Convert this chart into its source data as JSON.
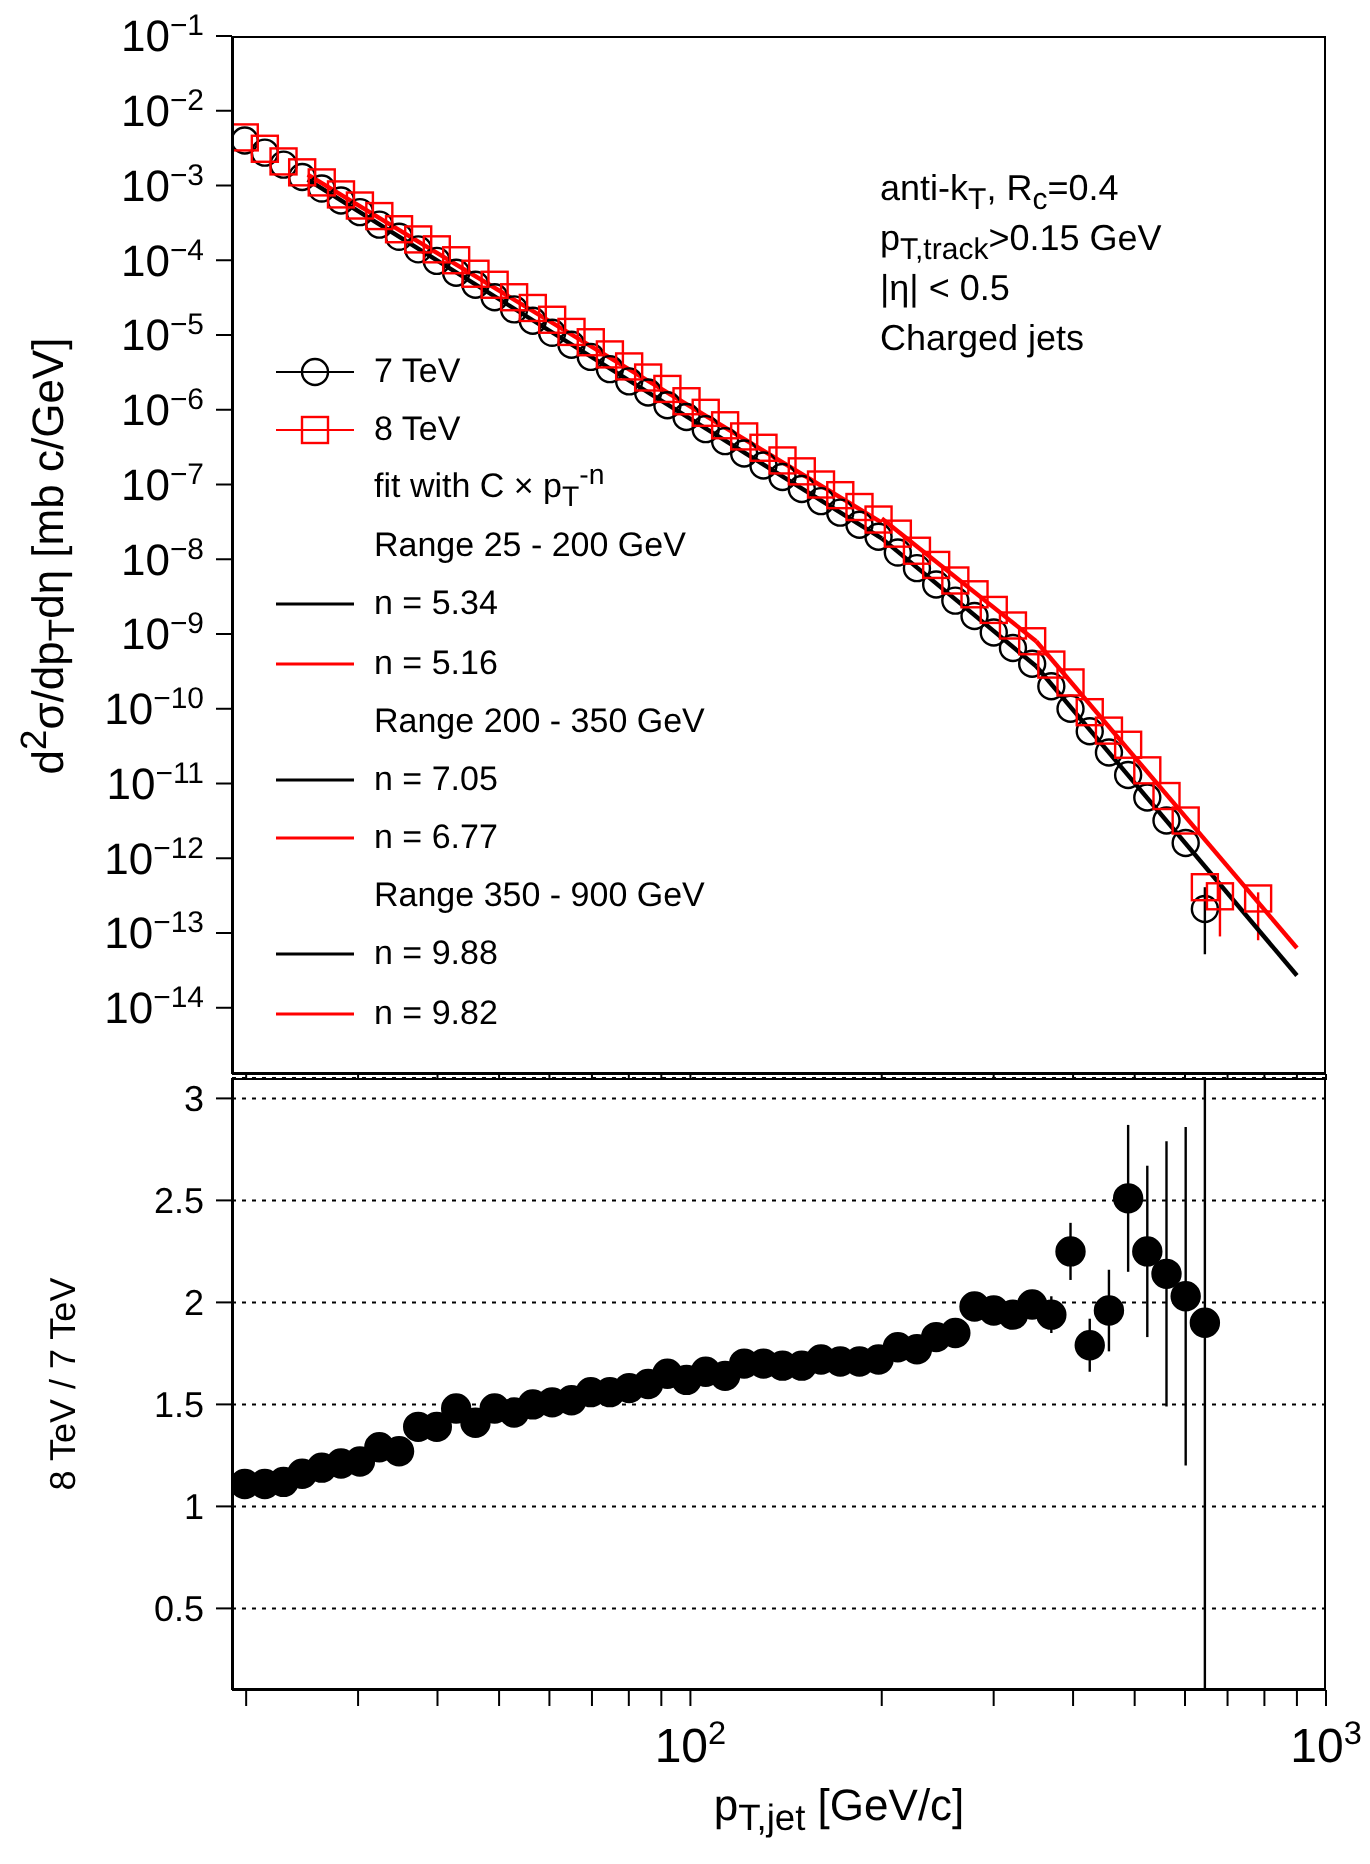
{
  "chart_data": [
    {
      "type": "scatter",
      "ylabel": "d$^{2}$σ/dp$_{T}$dη [mb c/GeV]",
      "legend": "left",
      "legend_title": "fit with C × p$_{T}$$^{-n}$",
      "log": "xy",
      "tick_labels": "y",
      "annotations": [
        "anti-k$_{T}$, R$_{c}$=0.4",
        "p$_{T,track}$>0.15 GeV",
        "|η| < 0.5",
        "Charged jets",
        "Range 25 - 200 GeV",
        "Range 200 - 350 GeV",
        "Range 350 - 900 GeV"
      ],
      "xlim": [
        19,
        1000
      ],
      "ylim": [
        1.3e-15,
        0.1
      ],
      "xticks": [
        {
          "value": 20,
          "label": null
        },
        {
          "value": 30,
          "label": null
        },
        {
          "value": 40,
          "label": null
        },
        {
          "value": 50,
          "label": null
        },
        {
          "value": 60,
          "label": null
        },
        {
          "value": 70,
          "label": null
        },
        {
          "value": 80,
          "label": null
        },
        {
          "value": 90,
          "label": null
        },
        {
          "value": 100,
          "label": null
        },
        {
          "value": 200,
          "label": null
        },
        {
          "value": 300,
          "label": null
        },
        {
          "value": 400,
          "label": null
        },
        {
          "value": 500,
          "label": null
        },
        {
          "value": 600,
          "label": null
        },
        {
          "value": 700,
          "label": null
        },
        {
          "value": 800,
          "label": null
        },
        {
          "value": 900,
          "label": null
        },
        {
          "value": 1000,
          "label": null
        }
      ],
      "yticks": [
        {
          "value": 0.1,
          "label": "10$^{−1}$"
        },
        {
          "value": 0.01,
          "label": "10$^{−2}$"
        },
        {
          "value": 0.001,
          "label": "10$^{−3}$"
        },
        {
          "value": 0.0001,
          "label": "10$^{−4}$"
        },
        {
          "value": 1e-05,
          "label": "10$^{−5}$"
        },
        {
          "value": 1e-06,
          "label": "10$^{−6}$"
        },
        {
          "value": 1e-07,
          "label": "10$^{−7}$"
        },
        {
          "value": 1e-08,
          "label": "10$^{−8}$"
        },
        {
          "value": 1e-09,
          "label": "10$^{−9}$"
        },
        {
          "value": 1e-10,
          "label": "10$^{−10}$"
        },
        {
          "value": 1e-11,
          "label": "10$^{−11}$"
        },
        {
          "value": 1e-12,
          "label": "10$^{−12}$"
        },
        {
          "value": 1e-13,
          "label": "10$^{−13}$"
        },
        {
          "value": 1e-14,
          "label": "10$^{−14}$"
        }
      ],
      "x": [
        19.9,
        21.4,
        22.9,
        24.5,
        26.3,
        28.2,
        30.2,
        32.4,
        34.8,
        37.3,
        39.9,
        42.8,
        45.9,
        49.2,
        52.8,
        56.5,
        60.6,
        65.0,
        69.7,
        74.7,
        80.1,
        85.8,
        92.0,
        98.6,
        105.7,
        113.4,
        121.5,
        130.3,
        139.6,
        149.7,
        160.5,
        172.1,
        184.5,
        197.7,
        212.0,
        227.2,
        243.6,
        261.1,
        279.9,
        300.1,
        321.7,
        344.9,
        369.7,
        396.3,
        424.9,
        455.5,
        488.3,
        523.4,
        561.1,
        601.5,
        644.8
      ],
      "series": [
        {
          "name": "7 TeV",
          "marker": "circle",
          "color": "#000000",
          "values": [
            0.004,
            0.00275,
            0.0019,
            0.0013,
            0.00091,
            0.00063,
            0.00044,
            0.0003,
            0.000206,
            0.00014,
            9.8e-05,
            6.8e-05,
            4.7e-05,
            3.2e-05,
            2.2e-05,
            1.55e-05,
            1.07e-05,
            7.4e-06,
            5.1e-06,
            3.5e-06,
            2.4e-06,
            1.7e-06,
            1.15e-06,
            8e-07,
            5.5e-07,
            3.8e-07,
            2.6e-07,
            1.8e-07,
            1.26e-07,
            8.7e-08,
            6e-08,
            4.2e-08,
            2.9e-08,
            2e-08,
            1.23e-08,
            7.6e-09,
            4.6e-09,
            2.8e-09,
            1.74e-09,
            1.05e-09,
            6.5e-10,
            4e-10,
            2e-10,
            1e-10,
            5e-11,
            2.6e-11,
            1.3e-11,
            6.5e-12,
            3.2e-12,
            1.6e-12,
            2.1e-13
          ],
          "errors": [
            null,
            null,
            null,
            null,
            null,
            null,
            null,
            null,
            null,
            null,
            null,
            null,
            null,
            null,
            null,
            null,
            null,
            null,
            null,
            null,
            null,
            null,
            null,
            null,
            null,
            null,
            null,
            null,
            null,
            null,
            null,
            null,
            null,
            null,
            null,
            null,
            null,
            null,
            null,
            null,
            null,
            null,
            null,
            null,
            null,
            null,
            null,
            null,
            null,
            null,
            [
              5.2e-14,
              4.1e-13
            ]
          ]
        },
        {
          "name": "8 TeV",
          "marker": "square",
          "color": "#ff0000",
          "x": [
            19.9,
            21.4,
            22.9,
            24.5,
            26.3,
            28.2,
            30.2,
            32.4,
            34.8,
            37.3,
            39.9,
            42.8,
            45.9,
            49.2,
            52.8,
            56.5,
            60.6,
            65.0,
            69.7,
            74.7,
            80.1,
            85.8,
            92.0,
            98.6,
            105.7,
            113.4,
            121.5,
            130.3,
            139.6,
            149.7,
            160.5,
            172.1,
            184.5,
            197.7,
            212.0,
            227.2,
            243.6,
            261.1,
            279.9,
            300.1,
            321.7,
            344.9,
            369.7,
            396.3,
            424.9,
            455.5,
            488.3,
            523.4,
            561.1,
            601.5,
            644.8,
            681,
            782
          ],
          "values": [
            0.0044,
            0.0031,
            0.0021,
            0.0015,
            0.0011,
            0.00076,
            0.00054,
            0.00039,
            0.00026,
            0.00019,
            0.00014,
            0.0001,
            6.6e-05,
            4.7e-05,
            3.2e-05,
            2.3e-05,
            1.6e-05,
            1.1e-05,
            8e-06,
            5.5e-06,
            3.8e-06,
            2.7e-06,
            1.9e-06,
            1.3e-06,
            9.1e-07,
            6.2e-07,
            4.4e-07,
            3.1e-07,
            2.1e-07,
            1.5e-07,
            1e-07,
            7.2e-08,
            5e-08,
            3.4e-08,
            2.2e-08,
            1.3e-08,
            8.4e-09,
            5.2e-09,
            3.4e-09,
            2.1e-09,
            1.3e-09,
            8e-10,
            3.9e-10,
            2.25e-10,
            9e-11,
            5.1e-11,
            3.3e-11,
            1.5e-11,
            6.8e-12,
            3.2e-12,
            4.1e-13,
            3.1e-13,
            2.9e-13
          ],
          "errors": [
            null,
            null,
            null,
            null,
            null,
            null,
            null,
            null,
            null,
            null,
            null,
            null,
            null,
            null,
            null,
            null,
            null,
            null,
            null,
            null,
            null,
            null,
            null,
            null,
            null,
            null,
            null,
            null,
            null,
            null,
            null,
            null,
            null,
            null,
            null,
            null,
            null,
            null,
            null,
            null,
            null,
            null,
            null,
            null,
            null,
            null,
            null,
            null,
            null,
            null,
            null,
            [
              9e-14,
              4.1e-13
            ],
            [
              8e-14,
              3.5e-13
            ]
          ]
        },
        {
          "name": "n = 5.34",
          "type": "line",
          "color": "#000000",
          "x": [
            25,
            200
          ],
          "values": [
            0.0012,
            1.9e-08
          ]
        },
        {
          "name": "n = 5.16",
          "type": "line",
          "color": "#ff0000",
          "x": [
            25,
            200
          ],
          "values": [
            0.0014,
            3.1e-08
          ]
        },
        {
          "name": "n = 7.05",
          "type": "line",
          "color": "#000000",
          "x": [
            200,
            350
          ],
          "values": [
            1.9e-08,
            3.7e-10
          ]
        },
        {
          "name": "n = 6.77",
          "type": "line",
          "color": "#ff0000",
          "x": [
            200,
            350
          ],
          "values": [
            3.5e-08,
            8e-10
          ]
        },
        {
          "name": "n = 9.88",
          "type": "line",
          "color": "#000000",
          "x": [
            350,
            900
          ],
          "values": [
            3.7e-10,
            2.7e-14
          ]
        },
        {
          "name": "n = 9.82",
          "type": "line",
          "color": "#ff0000",
          "x": [
            350,
            900
          ],
          "values": [
            8e-10,
            6.3e-14
          ]
        }
      ]
    },
    {
      "type": "scatter",
      "xlabel": "p$_{T,jet}$ [GeV/c]",
      "ylabel": "8 TeV / 7 TeV",
      "log": "x",
      "grid": "y",
      "marker": "circle",
      "color": "#000000",
      "xlim": [
        19,
        1000
      ],
      "ylim": [
        0.1,
        3.1
      ],
      "xticks": [
        {
          "value": 20,
          "label": null
        },
        {
          "value": 30,
          "label": null
        },
        {
          "value": 40,
          "label": null
        },
        {
          "value": 50,
          "label": null
        },
        {
          "value": 60,
          "label": null
        },
        {
          "value": 70,
          "label": null
        },
        {
          "value": 80,
          "label": null
        },
        {
          "value": 90,
          "label": null
        },
        {
          "value": 100,
          "label": "10$^{2}$"
        },
        {
          "value": 200,
          "label": null
        },
        {
          "value": 300,
          "label": null
        },
        {
          "value": 400,
          "label": null
        },
        {
          "value": 500,
          "label": null
        },
        {
          "value": 600,
          "label": null
        },
        {
          "value": 700,
          "label": null
        },
        {
          "value": 800,
          "label": null
        },
        {
          "value": 900,
          "label": null
        },
        {
          "value": 1000,
          "label": "10$^{3}$"
        }
      ],
      "yticks": [
        0.5,
        1,
        1.5,
        2,
        2.5,
        3
      ],
      "x": [
        19.9,
        21.4,
        22.9,
        24.5,
        26.3,
        28.2,
        30.2,
        32.4,
        34.8,
        37.3,
        39.9,
        42.8,
        45.9,
        49.2,
        52.8,
        56.5,
        60.6,
        65.0,
        69.7,
        74.7,
        80.1,
        85.8,
        92.0,
        98.6,
        105.7,
        113.4,
        121.5,
        130.3,
        139.6,
        149.7,
        160.5,
        172.1,
        184.5,
        197.7,
        212.0,
        227.2,
        243.6,
        261.1,
        279.9,
        300.1,
        321.7,
        344.9,
        369.7,
        396.3,
        424.9,
        455.5,
        488.3,
        523.4,
        561.1,
        601.5,
        644.8
      ],
      "values": [
        1.11,
        1.11,
        1.12,
        1.16,
        1.19,
        1.21,
        1.22,
        1.29,
        1.27,
        1.39,
        1.39,
        1.48,
        1.41,
        1.48,
        1.46,
        1.5,
        1.51,
        1.52,
        1.56,
        1.56,
        1.58,
        1.6,
        1.65,
        1.62,
        1.66,
        1.64,
        1.7,
        1.7,
        1.69,
        1.69,
        1.72,
        1.71,
        1.71,
        1.72,
        1.78,
        1.77,
        1.83,
        1.85,
        1.98,
        1.96,
        1.94,
        1.99,
        1.94,
        2.25,
        1.79,
        1.96,
        2.51,
        2.25,
        2.14,
        2.03,
        1.9
      ],
      "errors": [
        null,
        null,
        null,
        null,
        null,
        null,
        null,
        null,
        null,
        null,
        null,
        null,
        null,
        null,
        null,
        null,
        null,
        null,
        null,
        null,
        null,
        null,
        null,
        null,
        null,
        null,
        null,
        null,
        null,
        null,
        null,
        null,
        null,
        null,
        null,
        null,
        null,
        null,
        null,
        null,
        null,
        null,
        0.09,
        0.14,
        0.13,
        0.2,
        0.36,
        0.42,
        0.65,
        0.83,
        [
          0.1,
          3.1
        ]
      ]
    }
  ]
}
